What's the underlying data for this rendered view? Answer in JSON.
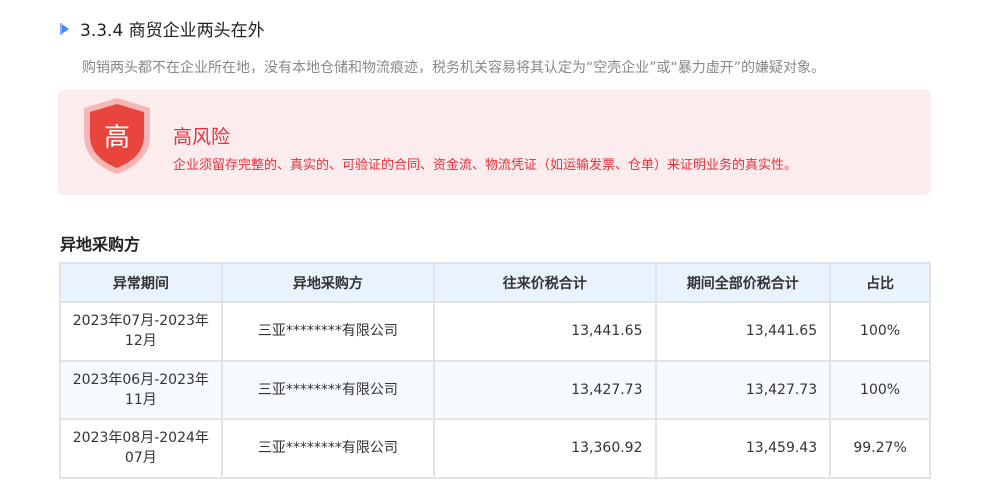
{
  "section": {
    "title": "3.3.4 商贸企业两头在外",
    "description": "购销两头都不在企业所在地，没有本地仓储和物流痕迹，税务机关容易将其认定为“空壳企业”或“暴力虚开”的嫌疑对象。"
  },
  "risk": {
    "badge": "高",
    "level": "高风险",
    "advice": "企业须留存完整的、真实的、可验证的合同、资金流、物流凭证（如运输发票、仓单）来证明业务的真实性。",
    "color": "#e8313b"
  },
  "table": {
    "title": "异地采购方",
    "headers": [
      "异常期间",
      "异地采购方",
      "往来价税合计",
      "期间全部价税合计",
      "占比"
    ],
    "rows": [
      [
        "2023年07月-2023年12月",
        "三亚********有限公司",
        "13,441.65",
        "13,441.65",
        "100%"
      ],
      [
        "2023年06月-2023年11月",
        "三亚********有限公司",
        "13,427.73",
        "13,427.73",
        "100%"
      ],
      [
        "2023年08月-2024年07月",
        "三亚********有限公司",
        "13,360.92",
        "13,459.43",
        "99.27%"
      ]
    ]
  }
}
